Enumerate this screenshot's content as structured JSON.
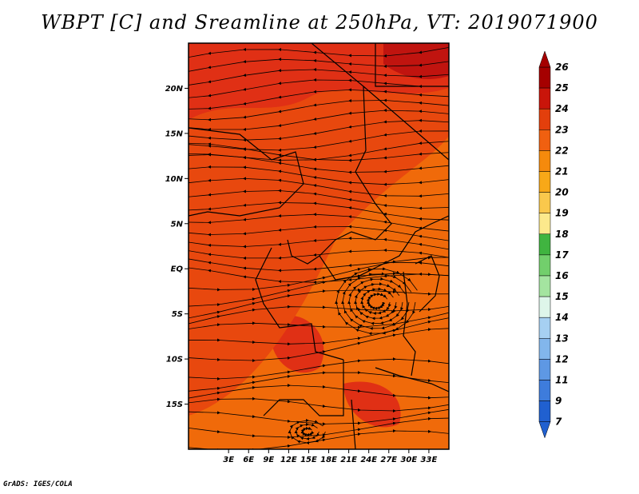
{
  "title": "WBPT [C] and Sreamline at 250hPa, VT: 2019071900",
  "credit": "GrADS: IGES/COLA",
  "map": {
    "lon_range": [
      -3,
      36
    ],
    "lat_range": [
      -20,
      25
    ],
    "lon_ticks": [
      "3E",
      "6E",
      "9E",
      "12E",
      "15E",
      "18E",
      "21E",
      "24E",
      "27E",
      "30E",
      "33E"
    ],
    "lat_ticks": [
      "20N",
      "15N",
      "10N",
      "5N",
      "EQ",
      "5S",
      "10S",
      "15S"
    ],
    "field_colors": {
      "c22": "#f06a0a",
      "c23": "#e8480e",
      "c24": "#e03015",
      "c25": "#c0140f"
    }
  },
  "colorbar": {
    "labels": [
      "26",
      "25",
      "24",
      "23",
      "22",
      "21",
      "20",
      "19",
      "18",
      "17",
      "16",
      "15",
      "14",
      "13",
      "12",
      "11",
      "9",
      "7"
    ],
    "colors": [
      "#a50000",
      "#c9150a",
      "#e33f0c",
      "#f06010",
      "#f58a0c",
      "#f8a818",
      "#fac84c",
      "#fce98c",
      "#40b440",
      "#72cf6c",
      "#a4e4a0",
      "#def6ea",
      "#a6d0f2",
      "#82b6ec",
      "#5e98e4",
      "#3e7cdc",
      "#2060d0"
    ]
  }
}
